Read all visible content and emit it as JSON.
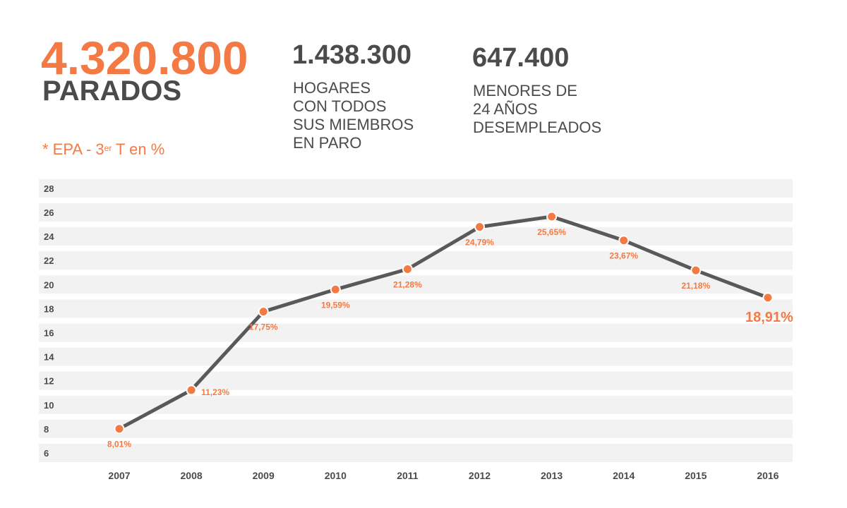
{
  "headline": {
    "value": "4.320.800",
    "label": "PARADOS"
  },
  "note": {
    "prefix": "* EPA - 3",
    "sup": "er",
    "suffix": " T en %"
  },
  "stats": [
    {
      "value": "1.438.300",
      "text": "HOGARES\nCON TODOS\nSUS MIEMBROS\nEN PARO"
    },
    {
      "value": "647.400",
      "text": "MENORES DE\n24 AÑOS\nDESEMPLEADOS"
    }
  ],
  "colors": {
    "accent": "#f47a45",
    "line": "#59595b",
    "text": "#4b4b4d",
    "band": "#f2f2f2"
  },
  "chart_data": {
    "type": "line",
    "categories": [
      "2007",
      "2008",
      "2009",
      "2010",
      "2011",
      "2012",
      "2013",
      "2014",
      "2015",
      "2016"
    ],
    "values": [
      8.01,
      11.23,
      17.75,
      19.59,
      21.28,
      24.79,
      25.65,
      23.67,
      21.18,
      18.91
    ],
    "data_labels": [
      "8,01%",
      "11,23%",
      "17,75%",
      "19,59%",
      "21,28%",
      "24,79%",
      "25,65%",
      "23,67%",
      "21,18%",
      "18,91%"
    ],
    "yticks": [
      6,
      8,
      10,
      12,
      14,
      16,
      18,
      20,
      22,
      24,
      26,
      28
    ],
    "ylim": [
      6,
      28
    ],
    "grid": "horizontal bands",
    "title": "",
    "xlabel": "",
    "ylabel": ""
  }
}
